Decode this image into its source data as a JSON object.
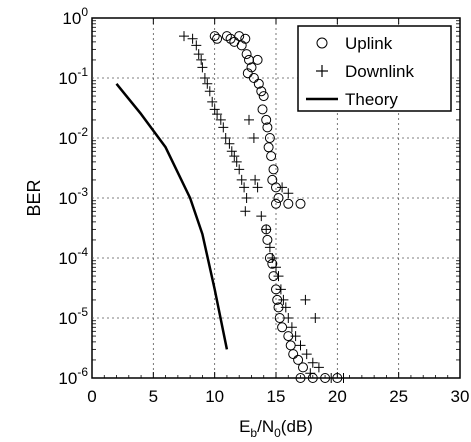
{
  "chart_data": {
    "type": "scatter",
    "xlabel": {
      "main": "E",
      "sub1": "b",
      "mid": "/N",
      "sub2": "0",
      "tail": "(dB)"
    },
    "ylabel": "BER",
    "xlim": [
      0,
      30
    ],
    "ylim": [
      1e-06,
      1
    ],
    "yscale": "log",
    "grid": true,
    "legend_position": "top-right",
    "x_ticks": [
      "0",
      "5",
      "10",
      "15",
      "20",
      "25",
      "30"
    ],
    "y_ticks": [
      {
        "base": "10",
        "exp": "0"
      },
      {
        "base": "10",
        "exp": "-1"
      },
      {
        "base": "10",
        "exp": "-2"
      },
      {
        "base": "10",
        "exp": "-3"
      },
      {
        "base": "10",
        "exp": "-4"
      },
      {
        "base": "10",
        "exp": "-5"
      },
      {
        "base": "10",
        "exp": "-6"
      }
    ],
    "series": [
      {
        "name": "Uplink",
        "marker": "circle",
        "points": [
          [
            10,
            0.5
          ],
          [
            10.2,
            0.45
          ],
          [
            11,
            0.5
          ],
          [
            11.3,
            0.45
          ],
          [
            12,
            0.5
          ],
          [
            12.2,
            0.35
          ],
          [
            11.6,
            0.4
          ],
          [
            12.5,
            0.45
          ],
          [
            12.6,
            0.25
          ],
          [
            12.8,
            0.2
          ],
          [
            13,
            0.15
          ],
          [
            12.7,
            0.12
          ],
          [
            13.2,
            0.1
          ],
          [
            13.5,
            0.2
          ],
          [
            13.6,
            0.08
          ],
          [
            13.8,
            0.06
          ],
          [
            14,
            0.05
          ],
          [
            13.9,
            0.03
          ],
          [
            14.2,
            0.02
          ],
          [
            14.3,
            0.015
          ],
          [
            14.5,
            0.01
          ],
          [
            14.4,
            0.007
          ],
          [
            14.6,
            0.005
          ],
          [
            14.8,
            0.003
          ],
          [
            14.7,
            0.002
          ],
          [
            15,
            0.0015
          ],
          [
            15.2,
            0.001
          ],
          [
            15,
            0.0008
          ],
          [
            16,
            0.0008
          ],
          [
            17,
            0.0008
          ],
          [
            14.2,
            0.0003
          ],
          [
            14.3,
            0.0002
          ],
          [
            14.5,
            0.0001
          ],
          [
            14.7,
            8e-05
          ],
          [
            14.8,
            5e-05
          ],
          [
            15,
            3e-05
          ],
          [
            15.1,
            2e-05
          ],
          [
            15.2,
            1.5e-05
          ],
          [
            15.3,
            1e-05
          ],
          [
            15.5,
            7e-06
          ],
          [
            16,
            5e-06
          ],
          [
            16.2,
            3.5e-06
          ],
          [
            16.4,
            2.5e-06
          ],
          [
            16.8,
            2e-06
          ],
          [
            17.2,
            1.5e-06
          ],
          [
            17,
            1e-06
          ],
          [
            18,
            1e-06
          ],
          [
            19,
            1e-06
          ],
          [
            20,
            1e-06
          ]
        ]
      },
      {
        "name": "Downlink",
        "marker": "plus",
        "points": [
          [
            7.5,
            0.5
          ],
          [
            8.2,
            0.45
          ],
          [
            8.5,
            0.35
          ],
          [
            8.7,
            0.25
          ],
          [
            8.9,
            0.2
          ],
          [
            9,
            0.15
          ],
          [
            9.2,
            0.1
          ],
          [
            9.4,
            0.08
          ],
          [
            9.6,
            0.06
          ],
          [
            9.8,
            0.04
          ],
          [
            10,
            0.03
          ],
          [
            10.2,
            0.025
          ],
          [
            10.5,
            0.02
          ],
          [
            10.7,
            0.015
          ],
          [
            10.9,
            0.01
          ],
          [
            11.2,
            0.008
          ],
          [
            11.4,
            0.006
          ],
          [
            11.6,
            0.005
          ],
          [
            11.8,
            0.004
          ],
          [
            12,
            0.003
          ],
          [
            12.2,
            0.002
          ],
          [
            12.4,
            0.0015
          ],
          [
            12.6,
            0.001
          ],
          [
            12.5,
            0.0006
          ],
          [
            13.3,
            0.002
          ],
          [
            13.5,
            0.0015
          ],
          [
            13.2,
            0.01
          ],
          [
            12.8,
            0.02
          ],
          [
            15.5,
            0.0015
          ],
          [
            16,
            0.0012
          ],
          [
            13.8,
            0.0005
          ],
          [
            14.2,
            0.0003
          ],
          [
            14.5,
            0.00015
          ],
          [
            14.7,
            0.0001
          ],
          [
            15,
            7e-05
          ],
          [
            15.2,
            5e-05
          ],
          [
            15.4,
            3e-05
          ],
          [
            15.6,
            2e-05
          ],
          [
            15.8,
            1.5e-05
          ],
          [
            16,
            1e-05
          ],
          [
            16.3,
            7e-06
          ],
          [
            16.6,
            5e-06
          ],
          [
            17,
            3.5e-06
          ],
          [
            17.5,
            2.5e-06
          ],
          [
            18,
            1.8e-06
          ],
          [
            18.5,
            1.5e-06
          ],
          [
            17.8,
            1.2e-06
          ],
          [
            19.5,
            1e-06
          ],
          [
            20.5,
            1e-06
          ],
          [
            18.2,
            1e-05
          ],
          [
            17.4,
            2e-05
          ]
        ]
      },
      {
        "name": "Theory",
        "marker": "line",
        "points": [
          [
            2,
            0.08
          ],
          [
            4,
            0.025
          ],
          [
            6,
            0.007
          ],
          [
            8,
            0.001
          ],
          [
            9,
            0.00025
          ],
          [
            10,
            3e-05
          ],
          [
            11,
            3e-06
          ]
        ]
      }
    ]
  }
}
